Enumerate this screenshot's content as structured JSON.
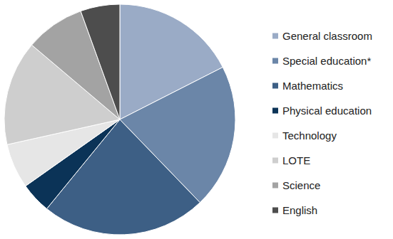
{
  "chart_data": {
    "type": "pie",
    "categories": [
      "General classroom",
      "Special education*",
      "Mathematics",
      "Physical education",
      "Technology",
      "LOTE",
      "Science",
      "English"
    ],
    "values": [
      17.5,
      20.3,
      23.1,
      4.3,
      6.3,
      14.7,
      8.3,
      5.5
    ],
    "colors": [
      "#9aabc6",
      "#6b86a8",
      "#3d5f85",
      "#0b3357",
      "#e6e6e6",
      "#cecece",
      "#a3a3a3",
      "#4d4d4d"
    ],
    "legend": "right"
  }
}
